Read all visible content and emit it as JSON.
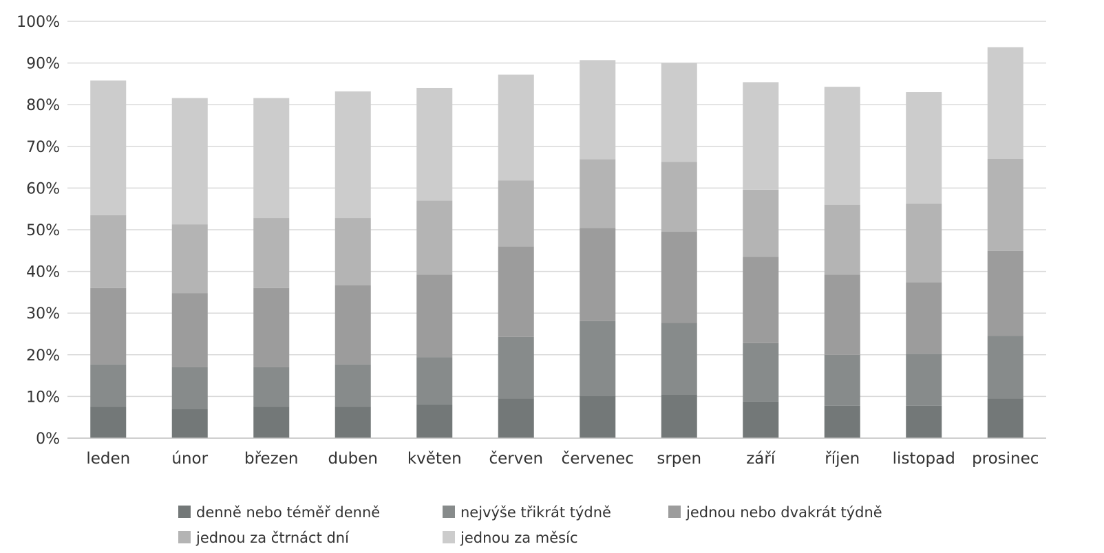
{
  "chart_data": {
    "type": "bar",
    "stacked": true,
    "title": "",
    "xlabel": "",
    "ylabel": "",
    "ylim": [
      0,
      100
    ],
    "y_ticks": [
      "0%",
      "10%",
      "20%",
      "30%",
      "40%",
      "50%",
      "60%",
      "70%",
      "80%",
      "90%",
      "100%"
    ],
    "grid": true,
    "legend_position": "bottom",
    "categories": [
      "leden",
      "únor",
      "březen",
      "duben",
      "květen",
      "červen",
      "červenec",
      "srpen",
      "září",
      "říjen",
      "listopad",
      "prosinec"
    ],
    "series": [
      {
        "name": "denně nebo téměř denně",
        "color": "#737878",
        "values": [
          7.5,
          7.0,
          7.5,
          7.5,
          8.0,
          9.5,
          10.2,
          10.5,
          8.8,
          7.8,
          7.8,
          9.5
        ]
      },
      {
        "name": "nejvýše třikrát týdně",
        "color": "#878b8b",
        "values": [
          10.2,
          10.0,
          9.5,
          10.2,
          11.4,
          14.8,
          17.9,
          17.2,
          14.0,
          12.2,
          12.4,
          15.0
        ]
      },
      {
        "name": "jednou nebo dvakrát týdně",
        "color": "#9c9c9c",
        "values": [
          18.3,
          17.8,
          19.0,
          19.0,
          19.8,
          21.7,
          22.3,
          21.8,
          20.7,
          19.2,
          17.2,
          20.4
        ]
      },
      {
        "name": "jednou za čtrnáct dní",
        "color": "#b4b4b4",
        "values": [
          17.5,
          16.5,
          16.8,
          16.1,
          17.8,
          15.8,
          16.5,
          16.8,
          16.1,
          16.8,
          18.9,
          22.1
        ]
      },
      {
        "name": "jednou za měsíc",
        "color": "#cccccc",
        "values": [
          32.3,
          30.3,
          28.8,
          30.4,
          27.0,
          25.4,
          23.8,
          23.7,
          25.8,
          28.3,
          26.7,
          26.8
        ]
      }
    ]
  }
}
